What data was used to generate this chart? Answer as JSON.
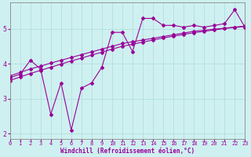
{
  "xlabel": "Windchill (Refroidissement éolien,°C)",
  "background_color": "#cff0f0",
  "line_color": "#990099",
  "x_data": [
    0,
    1,
    2,
    3,
    4,
    5,
    6,
    7,
    8,
    9,
    10,
    11,
    12,
    13,
    14,
    15,
    16,
    17,
    18,
    19,
    20,
    21,
    22,
    23
  ],
  "y_jagged": [
    3.6,
    3.7,
    4.1,
    3.85,
    2.55,
    3.45,
    2.1,
    3.3,
    3.45,
    3.9,
    4.9,
    4.9,
    4.35,
    5.3,
    5.3,
    5.1,
    5.1,
    5.05,
    5.1,
    5.05,
    5.1,
    5.15,
    5.55,
    5.05
  ],
  "y_trend1": [
    3.65,
    3.75,
    3.85,
    3.93,
    4.02,
    4.1,
    4.18,
    4.26,
    4.34,
    4.42,
    4.5,
    4.58,
    4.63,
    4.68,
    4.73,
    4.78,
    4.83,
    4.88,
    4.93,
    4.96,
    4.99,
    5.02,
    5.05,
    5.08
  ],
  "y_trend2": [
    3.52,
    3.62,
    3.72,
    3.81,
    3.9,
    3.99,
    4.08,
    4.16,
    4.25,
    4.33,
    4.42,
    4.5,
    4.56,
    4.62,
    4.68,
    4.74,
    4.79,
    4.84,
    4.89,
    4.93,
    4.97,
    5.01,
    5.04,
    5.07
  ],
  "xlim": [
    0,
    23
  ],
  "ylim": [
    1.85,
    5.75
  ],
  "yticks": [
    2,
    3,
    4,
    5
  ],
  "xticks": [
    0,
    1,
    2,
    3,
    4,
    5,
    6,
    7,
    8,
    9,
    10,
    11,
    12,
    13,
    14,
    15,
    16,
    17,
    18,
    19,
    20,
    21,
    22,
    23
  ],
  "grid_color": "#aadddd",
  "spine_color": "#888888",
  "tick_fontsize": 5,
  "xlabel_fontsize": 5.5,
  "ylabel_fontsize": 6
}
